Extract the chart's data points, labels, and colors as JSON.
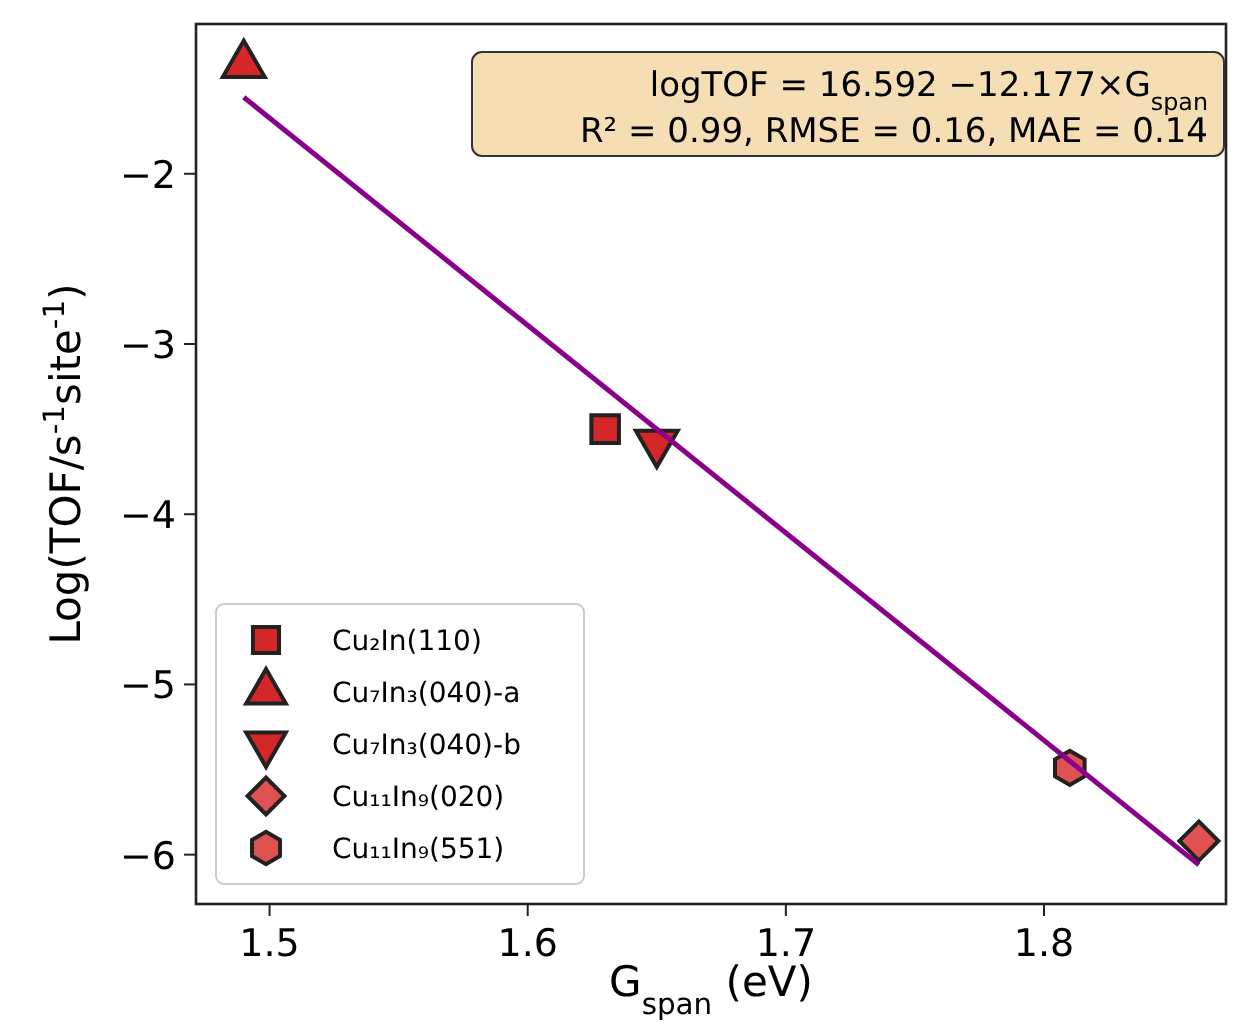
{
  "chart_data": {
    "type": "scatter",
    "xlabel": "G$_{span}$ (eV)",
    "ylabel": "Log(TOF/s$^{-1}$site$^{-1}$)",
    "xlim": [
      1.4715,
      1.8705
    ],
    "xticks": [
      1.5,
      1.6,
      1.7,
      1.8
    ],
    "ylim": [
      -6.29,
      -1.12
    ],
    "yticks": [
      -6,
      -5,
      -4,
      -3,
      -2
    ],
    "grid": false,
    "legend": "bottom left",
    "annotations": [
      "logTOF = 16.592 −12.177×G$_{span}$",
      "R² = 0.99, RMSE = 0.16, MAE = 0.14"
    ],
    "series": [
      {
        "name": "Cu₂In(110)",
        "color": "#d62728",
        "marker": "square",
        "x": [
          1.63
        ],
        "values": [
          -3.5
        ]
      },
      {
        "name": "Cu₇In₃(040)-a",
        "color": "#d62728",
        "marker": "triangle",
        "x": [
          1.49
        ],
        "values": [
          -1.36
        ]
      },
      {
        "name": "Cu₇In₃(040)-b",
        "color": "#d62728",
        "marker": "triangle_down",
        "x": [
          1.65
        ],
        "values": [
          -3.58
        ]
      },
      {
        "name": "Cu₁₁In₉(020)",
        "color": "#e05252",
        "marker": "diamond",
        "x": [
          1.86
        ],
        "values": [
          -5.92
        ]
      },
      {
        "name": "Cu₁₁In₉(551)",
        "color": "#e05252",
        "x": [
          1.81
        ],
        "values": [
          -5.49
        ]
      },
      {
        "type": "line",
        "color": "#8b008b",
        "line_style": "solid",
        "x": [
          1.49,
          1.86
        ],
        "values": [
          -1.55,
          -6.06
        ]
      }
    ]
  }
}
